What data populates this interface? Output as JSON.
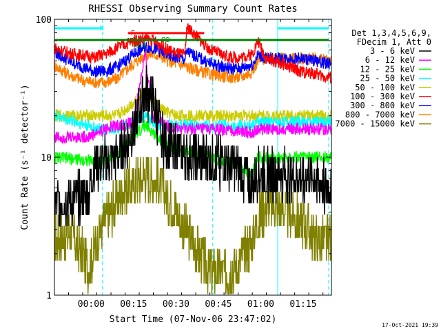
{
  "chart_data": {
    "type": "line",
    "title": "RHESSI Observing Summary Count Rates",
    "xlabel": "Start Time (07-Nov-06 23:47:02)",
    "ylabel": "Count Rate (s⁻¹ detector⁻¹)",
    "ylog": true,
    "ylim": [
      1,
      100
    ],
    "xlim_minutes": [
      0,
      98
    ],
    "x_tick_minutes": [
      13,
      28,
      43,
      58,
      73,
      88
    ],
    "x_tick_labels": [
      "00:00",
      "00:15",
      "00:30",
      "00:45",
      "01:00",
      "01:15"
    ],
    "y_tick_values": [
      1,
      10,
      100
    ],
    "y_tick_labels": [
      "1",
      "10",
      "100"
    ],
    "grid": false,
    "legend_position": "right",
    "legend_header": [
      "Det 1,3,4,5,6,9,",
      "FDecim 1, Att 0"
    ],
    "series": [
      {
        "name": "3 - 6 keV",
        "color": "#000000",
        "x": [
          0,
          12,
          14,
          18,
          22,
          25,
          28,
          32,
          35,
          38,
          40,
          43,
          47,
          55,
          62,
          66,
          70,
          72,
          75,
          80,
          87,
          93,
          96
        ],
        "y": [
          4.6,
          5.2,
          8.5,
          9.0,
          10,
          12,
          16,
          30,
          25,
          14,
          12,
          11.5,
          10,
          9.5,
          9,
          8,
          6.3,
          7.5,
          7.5,
          7.5,
          7.2,
          7,
          6
        ]
      },
      {
        "name": "6 - 12 keV",
        "color": "#ff00ff",
        "x": [
          0,
          12,
          15,
          18,
          22,
          25,
          28,
          32,
          35,
          38,
          40,
          43,
          47,
          55,
          62,
          66,
          70,
          72,
          75,
          80,
          87,
          93,
          96
        ],
        "y": [
          14,
          14,
          15,
          16,
          17,
          17,
          18,
          55,
          20,
          18,
          17,
          16,
          16,
          16,
          15.5,
          15.5,
          15,
          16,
          16,
          16,
          16,
          16,
          16
        ]
      },
      {
        "name": "12 - 25 keV",
        "color": "#00ff00",
        "x": [
          0,
          12,
          15,
          18,
          22,
          25,
          28,
          32,
          35,
          38,
          40,
          43,
          47,
          55,
          62,
          66,
          70,
          72,
          75,
          80,
          87,
          93,
          96
        ],
        "y": [
          10,
          9.5,
          9.2,
          9.5,
          10.5,
          12,
          14,
          17,
          15,
          13,
          12,
          11.5,
          11,
          10,
          9.2,
          8.5,
          7.5,
          10,
          10,
          10,
          10,
          10,
          10
        ]
      },
      {
        "name": "25 - 50 keV",
        "color": "#00ffff",
        "x": [
          0,
          12,
          15,
          18,
          22,
          25,
          28,
          32,
          35,
          38,
          40,
          43,
          47,
          55,
          62,
          66,
          70,
          72,
          75,
          80,
          87,
          93,
          96
        ],
        "y": [
          20,
          17,
          16,
          16,
          16.5,
          17,
          18,
          20,
          18,
          17,
          17,
          17,
          17,
          17,
          17,
          17,
          17,
          18,
          18,
          18,
          18,
          18,
          18
        ]
      },
      {
        "name": "50 - 100 keV",
        "color": "#cccc00",
        "x": [
          0,
          12,
          15,
          18,
          22,
          25,
          28,
          32,
          35,
          38,
          40,
          43,
          47,
          55,
          62,
          66,
          70,
          72,
          75,
          80,
          87,
          93,
          96
        ],
        "y": [
          20,
          20,
          20,
          20,
          20,
          22,
          25,
          30,
          26,
          22,
          21,
          20,
          20,
          20,
          20,
          20,
          20,
          20,
          20,
          20,
          20,
          20,
          20
        ]
      },
      {
        "name": "100 - 300 keV",
        "color": "#ff0000",
        "x": [
          0,
          5,
          10,
          14,
          18,
          22,
          25,
          28,
          32,
          35,
          38,
          40,
          43,
          46,
          47,
          55,
          62,
          66,
          70,
          72,
          75,
          80,
          87,
          93,
          96
        ],
        "y": [
          62,
          57,
          55,
          53,
          56,
          62,
          66,
          70,
          72,
          70,
          65,
          60,
          57,
          55,
          88,
          60,
          53,
          53,
          56,
          70,
          52,
          48,
          42,
          40,
          38
        ]
      },
      {
        "name": "300 - 800 keV",
        "color": "#0000ff",
        "x": [
          0,
          5,
          10,
          14,
          18,
          22,
          25,
          28,
          32,
          35,
          38,
          40,
          43,
          46,
          47,
          55,
          62,
          66,
          70,
          72,
          75,
          80,
          87,
          93,
          96
        ],
        "y": [
          58,
          50,
          45,
          42,
          42,
          45,
          50,
          56,
          63,
          62,
          58,
          55,
          53,
          51,
          58,
          48,
          44,
          44,
          47,
          55,
          52,
          52,
          52,
          50,
          48
        ]
      },
      {
        "name": "800 - 7000 keV",
        "color": "#ff8000",
        "x": [
          0,
          5,
          10,
          14,
          18,
          22,
          25,
          28,
          32,
          35,
          38,
          40,
          43,
          46,
          47,
          55,
          62,
          66,
          70,
          72,
          75,
          80,
          87,
          93,
          96
        ],
        "y": [
          46,
          40,
          36,
          35,
          35,
          37,
          42,
          48,
          55,
          56,
          54,
          50,
          48,
          46,
          45,
          40,
          38,
          38,
          42,
          50,
          52,
          52,
          52,
          52,
          50
        ]
      },
      {
        "name": "7000 - 15000 keV",
        "color": "#808000",
        "x": [
          0,
          6,
          12,
          15,
          18,
          22,
          25,
          28,
          32,
          35,
          38,
          40,
          43,
          47,
          55,
          62,
          66,
          70,
          72,
          75,
          80,
          87,
          93,
          96
        ],
        "y": [
          2.5,
          2.8,
          1.6,
          2.5,
          3.5,
          4.8,
          5.8,
          6.5,
          7.5,
          7.0,
          6.0,
          5.0,
          4.0,
          2.8,
          1.5,
          1.5,
          1.8,
          2.5,
          3.5,
          4.5,
          4.2,
          3.5,
          2.5,
          2.5
        ]
      }
    ],
    "annotations": [
      {
        "text": "N",
        "x_minutes": 16,
        "color": "#00ffff"
      },
      {
        "text": "F",
        "x_minutes": 27,
        "color": "#ff0000"
      },
      {
        "text": "RD",
        "x_minutes": 38,
        "color": "#008000"
      },
      {
        "text": "RD4",
        "x_minutes": 28,
        "color": "#008000"
      }
    ],
    "status_bars": [
      {
        "name": "night",
        "color": "#00ffff",
        "segments": [
          [
            0,
            17
          ],
          [
            79,
            97
          ]
        ]
      },
      {
        "name": "flare",
        "color": "#ff0000",
        "segments": [
          [
            26,
            53
          ]
        ]
      },
      {
        "name": "decimation",
        "color": "#008000",
        "segments": [
          [
            0,
            97
          ]
        ]
      }
    ],
    "vertical_markers": [
      {
        "x_minutes": 0,
        "style": "solid",
        "color": "#00ffff"
      },
      {
        "x_minutes": 17,
        "style": "dashed",
        "color": "#00ffff"
      },
      {
        "x_minutes": 56,
        "style": "dashed",
        "color": "#00ffff"
      },
      {
        "x_minutes": 79,
        "style": "solid",
        "color": "#00ffff"
      },
      {
        "x_minutes": 97,
        "style": "dashed",
        "color": "#00ffff"
      }
    ]
  },
  "footer": {
    "timestamp": "17-Oct-2021 19:39"
  }
}
